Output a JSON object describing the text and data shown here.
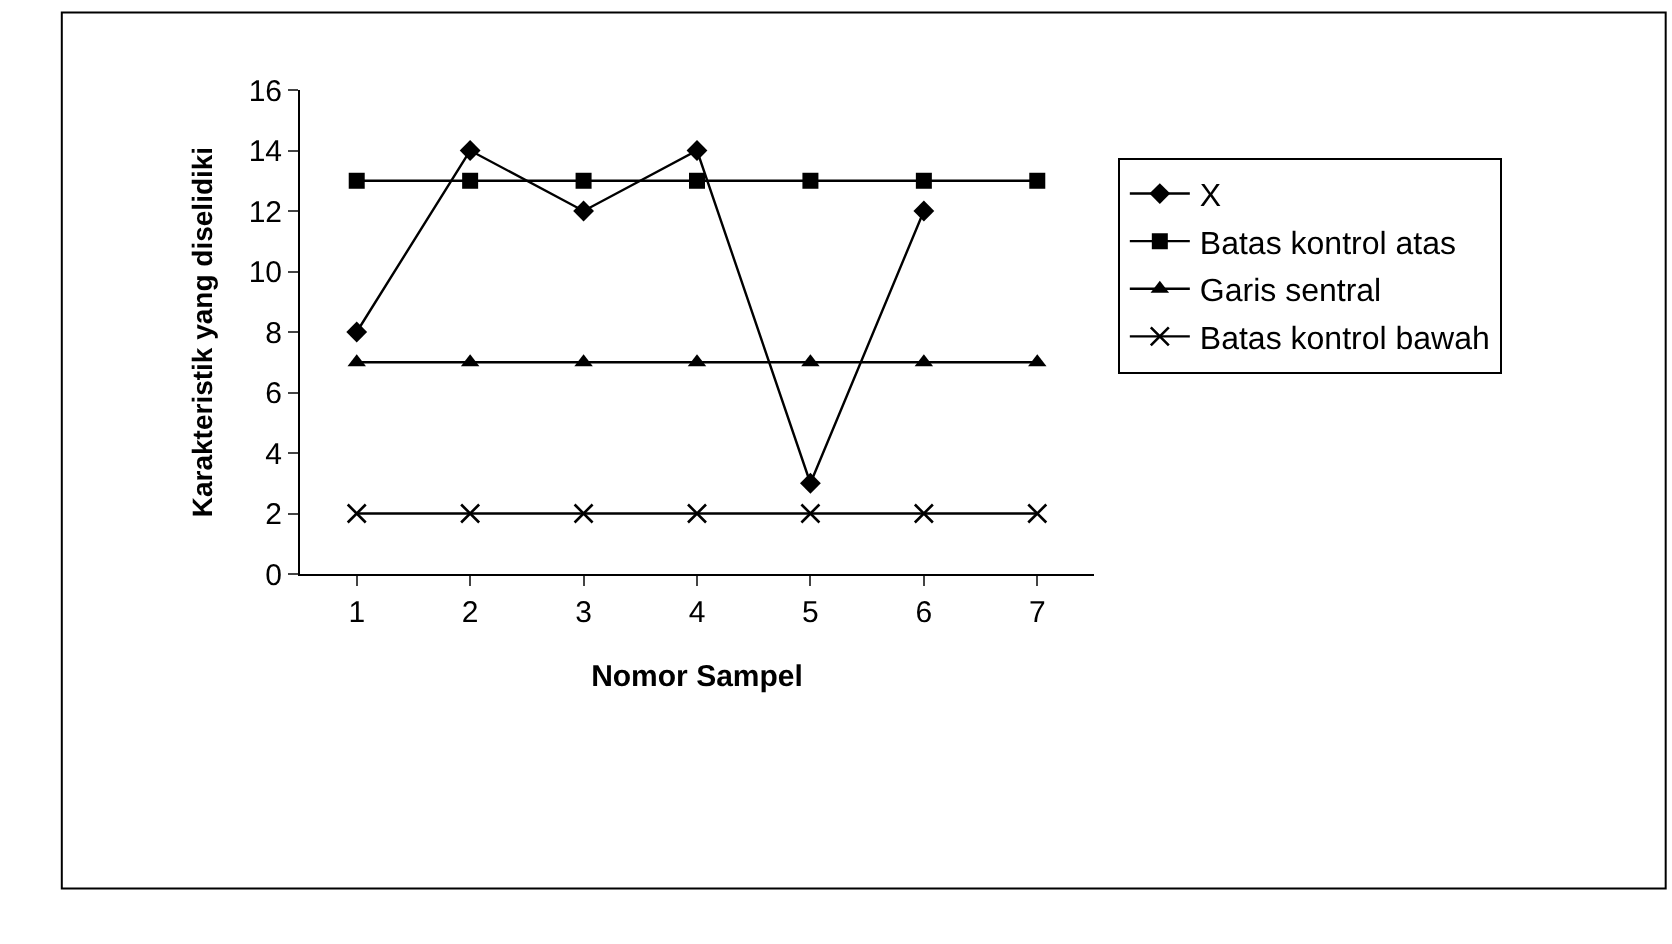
{
  "chart_data": {
    "type": "line",
    "xlabel": "Nomor Sampel",
    "ylabel": "Karakteristik yang diselidiki",
    "categories": [
      "1",
      "2",
      "3",
      "4",
      "5",
      "6",
      "7"
    ],
    "series": [
      {
        "name": "X",
        "color": "#000000",
        "marker": "diamond",
        "values": [
          8,
          14,
          12,
          14,
          3,
          12,
          null
        ]
      },
      {
        "name": "Batas kontrol atas",
        "color": "#000000",
        "marker": "square",
        "values": [
          13,
          13,
          13,
          13,
          13,
          13,
          13
        ]
      },
      {
        "name": "Garis sentral",
        "color": "#000000",
        "marker": "triangle",
        "values": [
          7,
          7,
          7,
          7,
          7,
          7,
          7
        ]
      },
      {
        "name": "Batas kontrol bawah",
        "color": "#000000",
        "marker": "cross",
        "values": [
          2,
          2,
          2,
          2,
          2,
          2,
          2
        ]
      }
    ],
    "ylim": [
      0,
      16
    ],
    "yticks": [
      0,
      2,
      4,
      6,
      8,
      10,
      12,
      14,
      16
    ],
    "grid": false,
    "legend": "right",
    "line_style": "solid"
  }
}
